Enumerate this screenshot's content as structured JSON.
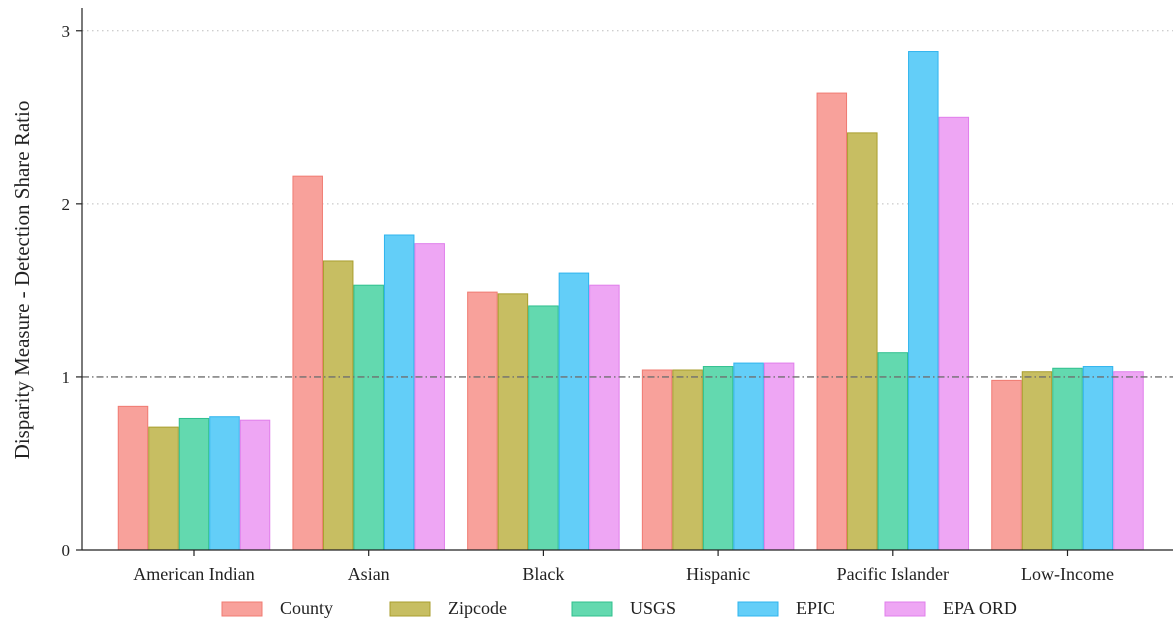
{
  "chart_data": {
    "type": "bar",
    "title": "",
    "xlabel": "",
    "ylabel": "Disparity Measure - Detection Share Ratio",
    "ylim": [
      0,
      3.12
    ],
    "yticks": [
      0,
      1,
      2,
      3
    ],
    "ytick_labels": [
      "0",
      "1",
      "2",
      "3"
    ],
    "grid": "horizontal dotted",
    "reference_line": 1,
    "legend_position": "bottom",
    "categories": [
      "American Indian",
      "Asian",
      "Black",
      "Hispanic",
      "Pacific Islander",
      "Low-Income"
    ],
    "series": [
      {
        "name": "County",
        "color": "#F8A19B",
        "edge": "#F07B72",
        "values": [
          0.83,
          2.16,
          1.49,
          1.04,
          2.64,
          0.98
        ]
      },
      {
        "name": "Zipcode",
        "color": "#C7BE62",
        "edge": "#A99E2E",
        "values": [
          0.71,
          1.67,
          1.48,
          1.04,
          2.41,
          1.03
        ]
      },
      {
        "name": "USGS",
        "color": "#63D9AF",
        "edge": "#2FC08E",
        "values": [
          0.76,
          1.53,
          1.41,
          1.06,
          1.14,
          1.05
        ]
      },
      {
        "name": "EPIC",
        "color": "#63CEF8",
        "edge": "#2FB4EE",
        "values": [
          0.77,
          1.82,
          1.6,
          1.08,
          2.88,
          1.06
        ]
      },
      {
        "name": "EPA ORD",
        "color": "#EEA6F4",
        "edge": "#E07FEB",
        "values": [
          0.75,
          1.77,
          1.53,
          1.08,
          2.5,
          1.03
        ]
      }
    ]
  }
}
